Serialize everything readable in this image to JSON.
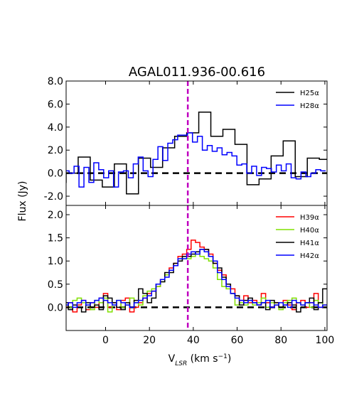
{
  "chart_data": [
    {
      "type": "line",
      "panel": "top",
      "title": "AGAL011.936-00.616",
      "xlabel": "",
      "ylabel": "Flux (Jy)",
      "xlim": [
        -18,
        101
      ],
      "ylim": [
        -2.8,
        8.0
      ],
      "y_ticks": [
        8.0,
        6.0,
        4.0,
        2.0,
        0.0,
        -2.0
      ],
      "y_tick_labels": [
        "8.0",
        "6.0",
        "4.0",
        "2.0",
        "0.0",
        "-2.0"
      ],
      "grid": false,
      "legend_position": "top-right",
      "reference_vline": {
        "x": 37.5,
        "color": "#c000c0",
        "style": "dashed"
      },
      "baseline": {
        "y": 0,
        "style": "dashed"
      },
      "series": [
        {
          "name": "H25α",
          "color": "#000000",
          "step": 5.5,
          "x": [
            -20.75,
            -15.25,
            -9.75,
            -4.25,
            1.25,
            6.75,
            12.25,
            17.75,
            23.25,
            28.75,
            34.25,
            39.75,
            45.25,
            50.75,
            56.25,
            61.75,
            67.25,
            72.75,
            78.25,
            83.75,
            89.25,
            94.75,
            100.25
          ],
          "y": [
            -0.8,
            0.0,
            1.4,
            -0.6,
            -1.2,
            0.8,
            -1.8,
            1.3,
            0.5,
            2.2,
            3.2,
            3.5,
            5.3,
            3.2,
            3.8,
            2.5,
            -1.0,
            -0.5,
            1.5,
            2.8,
            -0.3,
            1.3,
            1.2
          ]
        },
        {
          "name": "H28α",
          "color": "#0000ff",
          "step": 2.25,
          "x": [
            -20.0,
            -17.75,
            -15.5,
            -13.25,
            -11.0,
            -8.75,
            -6.5,
            -4.25,
            -2.0,
            0.25,
            2.5,
            4.75,
            7.0,
            9.25,
            11.5,
            13.75,
            16.0,
            18.25,
            20.5,
            22.75,
            25.0,
            27.25,
            29.5,
            31.75,
            34.0,
            36.25,
            38.5,
            40.75,
            43.0,
            45.25,
            47.5,
            49.75,
            52.0,
            54.25,
            56.5,
            58.75,
            61.0,
            63.25,
            65.5,
            67.75,
            70.0,
            72.25,
            74.5,
            76.75,
            79.0,
            81.25,
            83.5,
            85.75,
            88.0,
            90.25,
            92.5,
            94.75,
            97.0,
            99.25
          ],
          "y": [
            0.3,
            0.2,
            0.0,
            0.6,
            -1.2,
            0.5,
            -0.8,
            0.9,
            0.3,
            -0.4,
            0.2,
            -1.2,
            0.1,
            0.2,
            -0.4,
            0.8,
            1.4,
            0.2,
            -0.3,
            1.2,
            2.3,
            1.1,
            2.6,
            2.9,
            3.3,
            3.3,
            3.5,
            2.7,
            3.2,
            2.0,
            2.4,
            1.9,
            2.2,
            1.6,
            1.8,
            1.5,
            0.7,
            0.8,
            0.0,
            0.6,
            -0.2,
            0.5,
            0.4,
            0.1,
            0.7,
            0.2,
            0.8,
            -0.4,
            -0.5,
            0.1,
            -0.3,
            0.0,
            0.3,
            0.2
          ]
        }
      ]
    },
    {
      "type": "line",
      "panel": "bottom",
      "title": "",
      "xlabel": "V_LSR (km s^-1)",
      "ylabel": "",
      "xlim": [
        -18,
        101
      ],
      "ylim": [
        -0.5,
        2.2
      ],
      "x_ticks": [
        0,
        20,
        40,
        60,
        80,
        100
      ],
      "x_tick_labels": [
        "0",
        "20",
        "40",
        "60",
        "80",
        "100"
      ],
      "y_ticks": [
        2.0,
        1.5,
        1.0,
        0.5,
        0.0
      ],
      "y_tick_labels": [
        "2.0",
        "1.5",
        "1.0",
        "0.5",
        "0.0"
      ],
      "grid": false,
      "legend_position": "top-right",
      "reference_vline": {
        "x": 37.5,
        "color": "#c000c0",
        "style": "dashed"
      },
      "baseline": {
        "y": 0,
        "style": "dashed"
      },
      "series": [
        {
          "name": "H39α",
          "color": "#ff0000",
          "step": 2.0,
          "x": [
            -18,
            -16,
            -14,
            -12,
            -10,
            -8,
            -6,
            -4,
            -2,
            0,
            2,
            4,
            6,
            8,
            10,
            12,
            14,
            16,
            18,
            20,
            22,
            24,
            26,
            28,
            30,
            32,
            34,
            36,
            38,
            40,
            42,
            44,
            46,
            48,
            50,
            52,
            54,
            56,
            58,
            60,
            62,
            64,
            66,
            68,
            70,
            72,
            74,
            76,
            78,
            80,
            82,
            84,
            86,
            88,
            90,
            92,
            94,
            96,
            98,
            100
          ],
          "y": [
            0.0,
            0.1,
            -0.1,
            0.05,
            0.15,
            -0.05,
            0.1,
            0.0,
            0.2,
            0.3,
            0.0,
            0.1,
            -0.05,
            0.15,
            0.2,
            -0.1,
            0.0,
            0.1,
            0.2,
            0.3,
            0.35,
            0.45,
            0.6,
            0.7,
            0.85,
            0.95,
            1.1,
            1.15,
            1.25,
            1.45,
            1.4,
            1.3,
            1.25,
            1.15,
            0.95,
            0.8,
            0.7,
            0.5,
            0.4,
            0.25,
            0.15,
            0.25,
            0.1,
            0.15,
            0.05,
            0.3,
            0.1,
            0.0,
            0.1,
            0.0,
            0.15,
            0.05,
            -0.05,
            0.1,
            0.15,
            0.0,
            0.1,
            0.3,
            0.0,
            0.05
          ]
        },
        {
          "name": "H40α",
          "color": "#80e000",
          "step": 2.0,
          "x": [
            -18,
            -16,
            -14,
            -12,
            -10,
            -8,
            -6,
            -4,
            -2,
            0,
            2,
            4,
            6,
            8,
            10,
            12,
            14,
            16,
            18,
            20,
            22,
            24,
            26,
            28,
            30,
            32,
            34,
            36,
            38,
            40,
            42,
            44,
            46,
            48,
            50,
            52,
            54,
            56,
            58,
            60,
            62,
            64,
            66,
            68,
            70,
            72,
            74,
            76,
            78,
            80,
            82,
            84,
            86,
            88,
            90,
            92,
            94,
            96,
            98,
            100
          ],
          "y": [
            0.05,
            0.0,
            0.15,
            0.2,
            0.1,
            0.05,
            -0.05,
            0.15,
            0.1,
            0.2,
            -0.1,
            0.05,
            0.15,
            0.0,
            0.05,
            0.2,
            0.1,
            0.05,
            0.25,
            0.35,
            0.4,
            0.45,
            0.55,
            0.7,
            0.8,
            0.9,
            1.0,
            1.1,
            1.05,
            1.1,
            1.2,
            1.1,
            1.05,
            1.0,
            0.85,
            0.6,
            0.45,
            0.4,
            0.3,
            0.05,
            0.1,
            0.05,
            0.15,
            0.05,
            0.1,
            0.2,
            0.0,
            0.1,
            0.05,
            -0.05,
            0.1,
            0.15,
            0.2,
            0.1,
            0.05,
            0.1,
            0.0,
            0.15,
            0.1,
            0.05
          ]
        },
        {
          "name": "H41α",
          "color": "#000000",
          "step": 2.0,
          "x": [
            -18,
            -16,
            -14,
            -12,
            -10,
            -8,
            -6,
            -4,
            -2,
            0,
            2,
            4,
            6,
            8,
            10,
            12,
            14,
            16,
            18,
            20,
            22,
            24,
            26,
            28,
            30,
            32,
            34,
            36,
            38,
            40,
            42,
            44,
            46,
            48,
            50,
            52,
            54,
            56,
            58,
            60,
            62,
            64,
            66,
            68,
            70,
            72,
            74,
            76,
            78,
            80,
            82,
            84,
            86,
            88,
            90,
            92,
            94,
            96,
            98,
            100
          ],
          "y": [
            0.1,
            -0.05,
            0.05,
            0.0,
            -0.1,
            0.1,
            0.0,
            0.05,
            -0.05,
            0.25,
            0.2,
            0.1,
            0.0,
            -0.05,
            0.1,
            0.0,
            0.15,
            0.4,
            0.3,
            0.1,
            0.2,
            0.5,
            0.55,
            0.75,
            0.75,
            0.95,
            1.0,
            1.1,
            1.1,
            1.15,
            1.2,
            1.25,
            1.25,
            1.1,
            0.95,
            0.85,
            0.65,
            0.5,
            0.3,
            0.25,
            0.05,
            0.15,
            0.2,
            0.1,
            0.05,
            0.1,
            -0.05,
            0.15,
            0.1,
            0.0,
            0.05,
            0.1,
            0.05,
            -0.1,
            0.0,
            0.1,
            0.2,
            -0.05,
            0.1,
            0.4
          ]
        },
        {
          "name": "H42α",
          "color": "#0000ff",
          "step": 2.0,
          "x": [
            -18,
            -16,
            -14,
            -12,
            -10,
            -8,
            -6,
            -4,
            -2,
            0,
            2,
            4,
            6,
            8,
            10,
            12,
            14,
            16,
            18,
            20,
            22,
            24,
            26,
            28,
            30,
            32,
            34,
            36,
            38,
            40,
            42,
            44,
            46,
            48,
            50,
            52,
            54,
            56,
            58,
            60,
            62,
            64,
            66,
            68,
            70,
            72,
            74,
            76,
            78,
            80,
            82,
            84,
            86,
            88,
            90,
            92,
            94,
            96,
            98,
            100
          ],
          "y": [
            0.05,
            0.1,
            0.0,
            0.1,
            0.15,
            0.05,
            0.1,
            0.15,
            0.2,
            0.15,
            0.1,
            0.05,
            0.15,
            0.1,
            0.05,
            0.0,
            0.1,
            0.15,
            0.2,
            0.25,
            0.35,
            0.5,
            0.6,
            0.65,
            0.8,
            0.9,
            1.05,
            1.05,
            1.15,
            1.2,
            1.15,
            1.25,
            1.2,
            1.1,
            1.0,
            0.75,
            0.6,
            0.45,
            0.3,
            0.2,
            0.15,
            0.1,
            0.15,
            0.1,
            0.05,
            0.1,
            0.15,
            0.0,
            0.05,
            0.1,
            0.05,
            0.0,
            0.15,
            0.1,
            0.05,
            0.1,
            0.1,
            0.05,
            0.0,
            0.05
          ]
        }
      ]
    }
  ]
}
